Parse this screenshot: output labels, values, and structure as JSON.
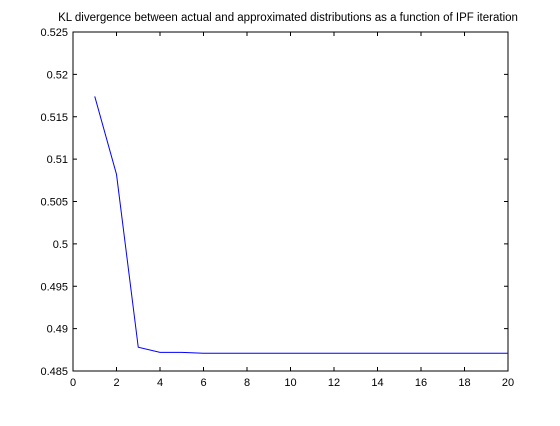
{
  "chart_data": {
    "type": "line",
    "title": "KL divergence between actual and approximated distributions as a function of IPF iteration",
    "xlabel": "",
    "ylabel": "",
    "xlim": [
      0,
      20
    ],
    "ylim": [
      0.485,
      0.525
    ],
    "xticks": [
      0,
      2,
      4,
      6,
      8,
      10,
      12,
      14,
      16,
      18,
      20
    ],
    "yticks": [
      0.485,
      0.49,
      0.495,
      0.5,
      0.505,
      0.51,
      0.515,
      0.52,
      0.525
    ],
    "xtick_labels": [
      "0",
      "2",
      "4",
      "6",
      "8",
      "10",
      "12",
      "14",
      "16",
      "18",
      "20"
    ],
    "ytick_labels": [
      "0.485",
      "0.49",
      "0.495",
      "0.5",
      "0.505",
      "0.51",
      "0.515",
      "0.52",
      "0.525"
    ],
    "grid": false,
    "series": [
      {
        "color": "#0000ff",
        "x": [
          1,
          2,
          3,
          4,
          5,
          6,
          7,
          8,
          9,
          10,
          11,
          12,
          13,
          14,
          15,
          16,
          17,
          18,
          19,
          20
        ],
        "y": [
          0.5174,
          0.5082,
          0.4878,
          0.4872,
          0.4872,
          0.4871,
          0.4871,
          0.4871,
          0.4871,
          0.4871,
          0.4871,
          0.4871,
          0.4871,
          0.4871,
          0.4871,
          0.4871,
          0.4871,
          0.4871,
          0.4871,
          0.4871
        ]
      }
    ]
  }
}
